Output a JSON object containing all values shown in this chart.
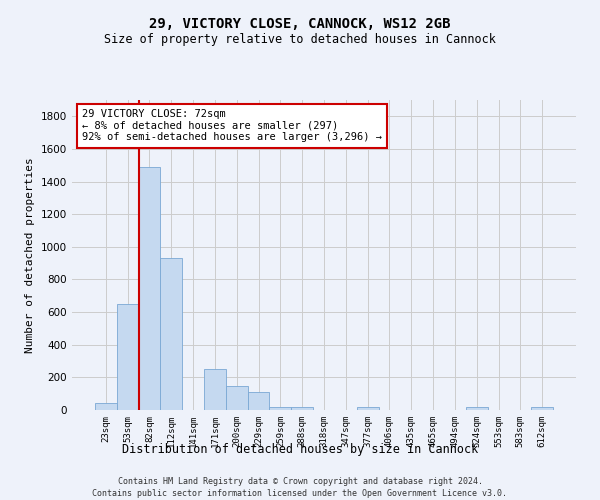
{
  "title_line1": "29, VICTORY CLOSE, CANNOCK, WS12 2GB",
  "title_line2": "Size of property relative to detached houses in Cannock",
  "xlabel": "Distribution of detached houses by size in Cannock",
  "ylabel": "Number of detached properties",
  "categories": [
    "23sqm",
    "53sqm",
    "82sqm",
    "112sqm",
    "141sqm",
    "171sqm",
    "200sqm",
    "229sqm",
    "259sqm",
    "288sqm",
    "318sqm",
    "347sqm",
    "377sqm",
    "406sqm",
    "435sqm",
    "465sqm",
    "494sqm",
    "524sqm",
    "553sqm",
    "583sqm",
    "612sqm"
  ],
  "values": [
    40,
    650,
    1490,
    930,
    0,
    250,
    150,
    110,
    20,
    20,
    0,
    0,
    20,
    0,
    0,
    0,
    0,
    20,
    0,
    0,
    20
  ],
  "bar_color": "#c5d9f0",
  "bar_edge_color": "#7aa8d4",
  "vline_x_index": 1.5,
  "vline_color": "#cc0000",
  "annotation_text": "29 VICTORY CLOSE: 72sqm\n← 8% of detached houses are smaller (297)\n92% of semi-detached houses are larger (3,296) →",
  "annotation_box_facecolor": "white",
  "annotation_box_edgecolor": "#cc0000",
  "ylim": [
    0,
    1900
  ],
  "yticks": [
    0,
    200,
    400,
    600,
    800,
    1000,
    1200,
    1400,
    1600,
    1800
  ],
  "grid_color": "#cccccc",
  "background_color": "#eef2fa",
  "plot_bg_color": "#eef2fa",
  "footer_line1": "Contains HM Land Registry data © Crown copyright and database right 2024.",
  "footer_line2": "Contains public sector information licensed under the Open Government Licence v3.0."
}
